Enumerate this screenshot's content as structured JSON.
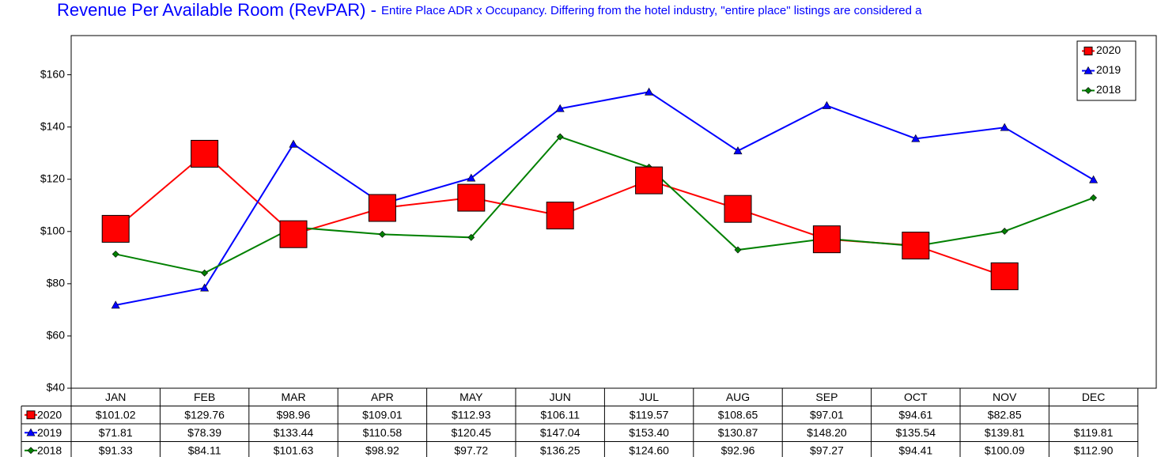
{
  "chart_data": {
    "type": "line",
    "title": "Revenue Per Available Room (RevPAR) - ",
    "subtitle": "Entire Place ADR x Occupancy. Differing from the hotel industry, \"entire place\" listings are considered a",
    "categories": [
      "JAN",
      "FEB",
      "MAR",
      "APR",
      "MAY",
      "JUN",
      "JUL",
      "AUG",
      "SEP",
      "OCT",
      "NOV",
      "DEC"
    ],
    "series": [
      {
        "name": "2020",
        "color": "#ff0000",
        "marker": "square",
        "values": [
          101.02,
          129.76,
          98.96,
          109.01,
          112.93,
          106.11,
          119.57,
          108.65,
          97.01,
          94.61,
          82.85,
          null
        ],
        "value_labels": [
          "$101.02",
          "$129.76",
          "$98.96",
          "$109.01",
          "$112.93",
          "$106.11",
          "$119.57",
          "$108.65",
          "$97.01",
          "$94.61",
          "$82.85",
          null
        ]
      },
      {
        "name": "2019",
        "color": "#0000ff",
        "marker": "triangle",
        "values": [
          71.81,
          78.39,
          133.44,
          110.58,
          120.45,
          147.04,
          153.4,
          130.87,
          148.2,
          135.54,
          139.81,
          119.81
        ],
        "value_labels": [
          "$71.81",
          "$78.39",
          "$133.44",
          "$110.58",
          "$120.45",
          "$147.04",
          "$153.40",
          "$130.87",
          "$148.20",
          "$135.54",
          "$139.81",
          "$119.81"
        ]
      },
      {
        "name": "2018",
        "color": "#008000",
        "marker": "diamond",
        "values": [
          91.33,
          84.11,
          101.63,
          98.92,
          97.72,
          136.25,
          124.6,
          92.96,
          97.27,
          94.41,
          100.09,
          112.9
        ],
        "value_labels": [
          "$91.33",
          "$84.11",
          "$101.63",
          "$98.92",
          "$97.72",
          "$136.25",
          "$124.60",
          "$92.96",
          "$97.27",
          "$94.41",
          "$100.09",
          "$112.90"
        ]
      }
    ],
    "ylim": [
      40,
      175
    ],
    "yticks": [
      {
        "value": 40,
        "label": "$40"
      },
      {
        "value": 60,
        "label": "$60"
      },
      {
        "value": 80,
        "label": "$80"
      },
      {
        "value": 100,
        "label": "$100"
      },
      {
        "value": 120,
        "label": "$120"
      },
      {
        "value": 140,
        "label": "$140"
      },
      {
        "value": 160,
        "label": "$160"
      }
    ],
    "legend": "top-right"
  }
}
